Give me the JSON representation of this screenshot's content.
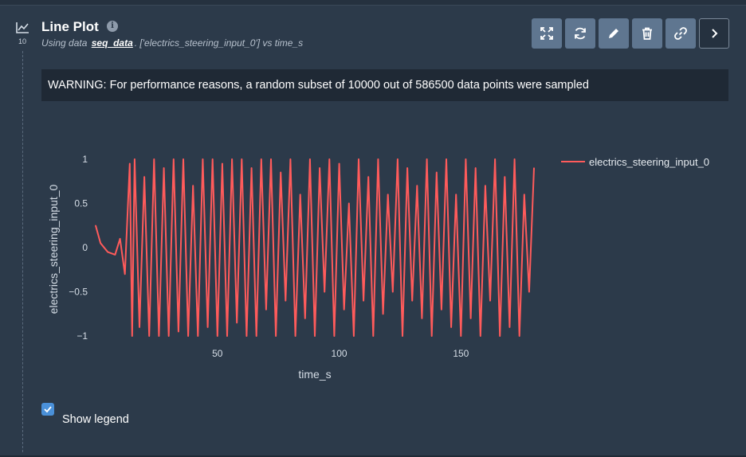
{
  "cell": {
    "number": "10",
    "title": "Line Plot",
    "subtitle_prefix": "Using data",
    "dataset": "seq_data",
    "subtitle_suffix": ". ['electrics_steering_input_0'] vs time_s",
    "icon": "line-plot-icon"
  },
  "toolbar": {
    "buttons": [
      {
        "name": "expand-button",
        "icon": "expand-icon"
      },
      {
        "name": "refresh-button",
        "icon": "refresh-icon"
      },
      {
        "name": "edit-button",
        "icon": "pencil-icon"
      },
      {
        "name": "delete-button",
        "icon": "trash-icon"
      },
      {
        "name": "link-button",
        "icon": "link-icon"
      },
      {
        "name": "next-button",
        "icon": "chevron-right-icon"
      }
    ]
  },
  "warning": "WARNING: For performance reasons, a random subset of 10000 out of 586500 data points were sampled",
  "legend_toggle": {
    "label": "Show legend",
    "checked": true
  },
  "colors": {
    "series": "#ff5b5b",
    "background": "#2c3a4a",
    "accent": "#4a90d9"
  },
  "chart_data": {
    "type": "line",
    "xlabel": "time_s",
    "ylabel": "electrics_steering_input_0",
    "xlim": [
      0,
      180
    ],
    "ylim": [
      -1,
      1
    ],
    "x_ticks": [
      50,
      100,
      150
    ],
    "y_ticks": [
      1,
      0.5,
      0,
      -0.5,
      -1
    ],
    "y_tick_labels": [
      "1",
      "0.5",
      "0",
      "−0.5",
      "−1"
    ],
    "grid": false,
    "legend_position": "top-right",
    "series": [
      {
        "name": "electrics_steering_input_0",
        "color": "#ff5b5b",
        "x": [
          0,
          2,
          5,
          8,
          10,
          12,
          14,
          15,
          16,
          18,
          20,
          22,
          24,
          26,
          28,
          30,
          32,
          34,
          36,
          38,
          40,
          42,
          44,
          46,
          48,
          50,
          52,
          54,
          56,
          58,
          60,
          62,
          64,
          66,
          68,
          70,
          72,
          74,
          76,
          78,
          80,
          82,
          84,
          86,
          88,
          90,
          92,
          94,
          96,
          98,
          100,
          102,
          104,
          106,
          108,
          110,
          112,
          114,
          116,
          118,
          120,
          122,
          124,
          126,
          128,
          130,
          132,
          134,
          136,
          138,
          140,
          142,
          144,
          146,
          148,
          150,
          152,
          154,
          156,
          158,
          160,
          162,
          164,
          166,
          168,
          170,
          172,
          174,
          176,
          178,
          180
        ],
        "y": [
          0.25,
          0.05,
          -0.05,
          -0.08,
          0.1,
          -0.3,
          0.95,
          -1,
          1,
          -0.9,
          0.8,
          -1,
          1,
          -1,
          0.9,
          -1,
          1,
          -0.95,
          1,
          -1,
          0.7,
          -1,
          1,
          -0.9,
          1,
          -1,
          0.95,
          -1,
          1,
          -0.85,
          1,
          -1,
          0.9,
          -1,
          1,
          -0.7,
          1,
          -1,
          0.85,
          -0.6,
          1,
          -1,
          0.6,
          -0.8,
          1,
          -1,
          0.9,
          -0.5,
          1,
          -1,
          0.95,
          -0.7,
          0.5,
          -1,
          1,
          -0.6,
          0.8,
          -1,
          1,
          -0.75,
          0.6,
          -0.5,
          1,
          -1,
          0.9,
          -0.6,
          0.7,
          -0.8,
          1,
          -1,
          0.85,
          -0.7,
          1,
          -0.9,
          0.6,
          -1,
          1,
          -0.8,
          0.9,
          -1,
          0.7,
          -0.6,
          1,
          -1,
          0.8,
          -0.9,
          1,
          -1,
          0.6,
          -0.5,
          0.9
        ]
      }
    ]
  }
}
